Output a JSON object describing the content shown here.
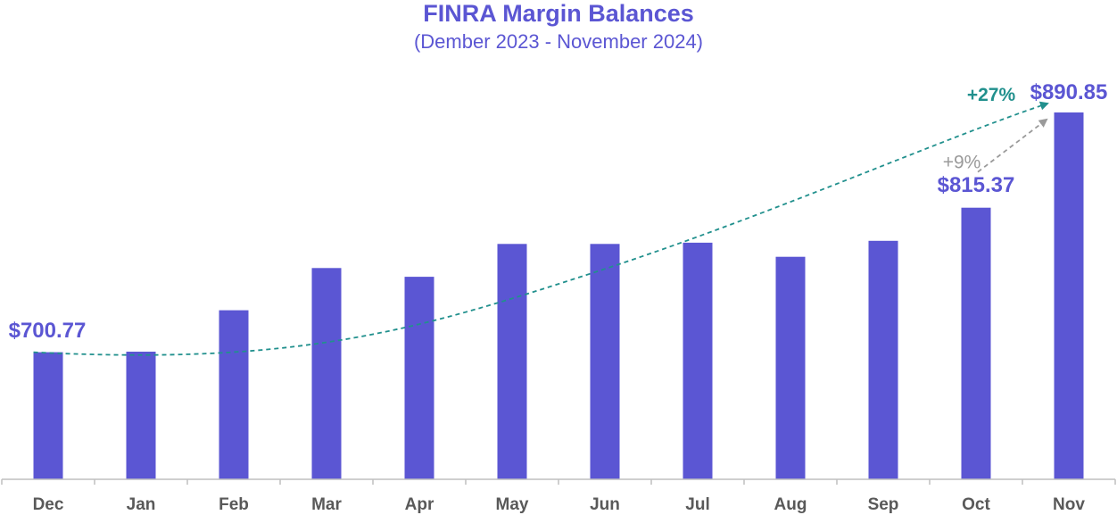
{
  "chart_data": {
    "type": "bar",
    "title": "FINRA Margin Balances",
    "subtitle": "(Dember 2023 - November 2024)",
    "categories": [
      "Dec",
      "Jan",
      "Feb",
      "Mar",
      "Apr",
      "May",
      "Jun",
      "Jul",
      "Aug",
      "Sep",
      "Oct",
      "Nov"
    ],
    "values": [
      700.77,
      701.2,
      734.0,
      767.5,
      760.6,
      786.6,
      786.6,
      787.6,
      776.4,
      789.1,
      815.37,
      890.85
    ],
    "ylim": [
      600,
      1000
    ],
    "grid": false,
    "legend": "none",
    "data_labels": [
      {
        "category": "Dec",
        "text": "$700.77"
      },
      {
        "category": "Oct",
        "text": "$815.37"
      },
      {
        "category": "Nov",
        "text": "$890.85"
      }
    ],
    "annotations": [
      {
        "text": "+27%",
        "from": "Dec",
        "to": "Nov",
        "style": "dashed-curve-arrow",
        "color": "#21908d"
      },
      {
        "text": "+9%",
        "from": "Oct",
        "to": "Nov",
        "style": "dashed-arrow",
        "color": "#9a9a9a"
      }
    ],
    "colors": {
      "bar": "#5b56d3",
      "title": "#5b56d3",
      "label": "#5b56d3",
      "axis_text": "#595959",
      "axis_line": "#bfbfbf",
      "trend": "#21908d",
      "sub_trend": "#9a9a9a"
    }
  }
}
